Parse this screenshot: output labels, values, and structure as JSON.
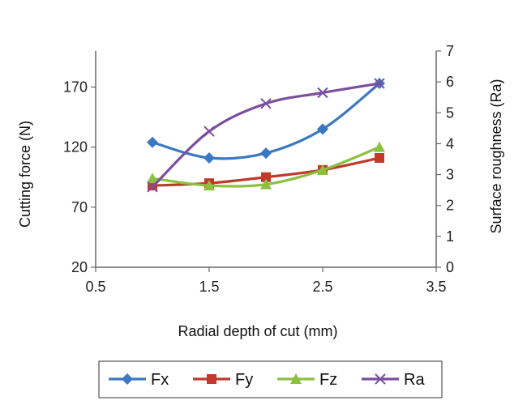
{
  "chart_data": {
    "type": "line",
    "xlabel": "Radial depth of cut (mm)",
    "ylabel": "Cutting force (N)",
    "y2label": "Surface roughness (Ra)",
    "xlim": [
      0.5,
      3.5
    ],
    "ylim": [
      20,
      200
    ],
    "y2lim": [
      0,
      7
    ],
    "xticks": [
      "0.5",
      "1.5",
      "2.5",
      "3.5"
    ],
    "xtick_values": [
      0.5,
      1.5,
      2.5,
      3.5
    ],
    "yticks": [
      "20",
      "70",
      "120",
      "170"
    ],
    "ytick_values": [
      20,
      70,
      120,
      170
    ],
    "y2ticks": [
      "0",
      "1",
      "2",
      "3",
      "4",
      "5",
      "6",
      "7"
    ],
    "y2tick_values": [
      0,
      1,
      2,
      3,
      4,
      5,
      6,
      7
    ],
    "grid": false,
    "legend_position": "bottom",
    "x": [
      1,
      1.5,
      2,
      2.5,
      3
    ],
    "series": [
      {
        "name": "Fx",
        "axis": "left",
        "values": [
          124,
          111,
          115,
          135,
          173
        ],
        "color": "#3a78c2",
        "marker": "diamond"
      },
      {
        "name": "Fy",
        "axis": "left",
        "values": [
          88,
          90,
          95,
          101,
          111
        ],
        "color": "#c0392b",
        "marker": "square"
      },
      {
        "name": "Fz",
        "axis": "left",
        "values": [
          94,
          88,
          89,
          101,
          120
        ],
        "color": "#8cc13f",
        "marker": "triangle"
      },
      {
        "name": "Ra",
        "axis": "right",
        "values": [
          2.6,
          4.4,
          5.3,
          5.65,
          5.95
        ],
        "color": "#7b4fa0",
        "marker": "x"
      }
    ]
  }
}
